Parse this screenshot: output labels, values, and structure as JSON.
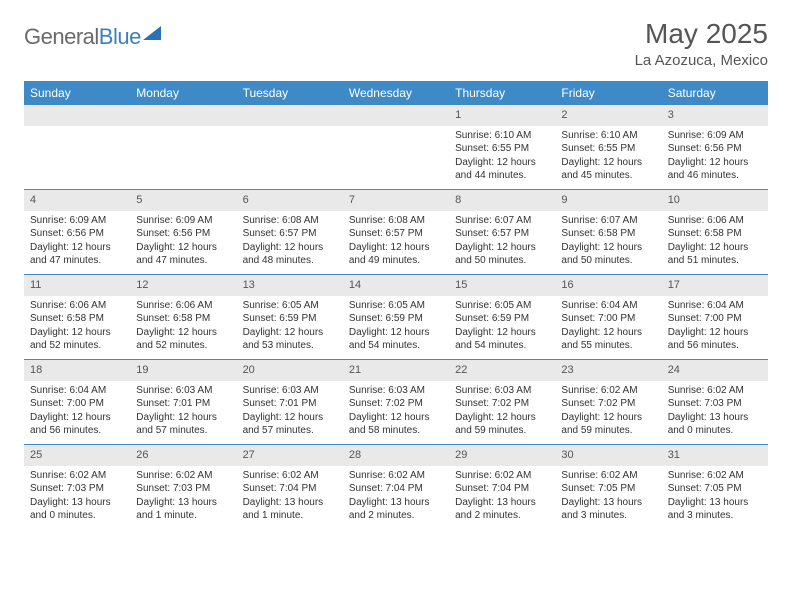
{
  "logo": {
    "text1": "General",
    "text2": "Blue"
  },
  "title": "May 2025",
  "location": "La Azozuca, Mexico",
  "colors": {
    "header_bg": "#3d8ac7",
    "header_fg": "#ffffff",
    "strip_bg": "#e9e9e9",
    "rule": "#3d8ac7",
    "text": "#333333",
    "title_fg": "#555555"
  },
  "dayNames": [
    "Sunday",
    "Monday",
    "Tuesday",
    "Wednesday",
    "Thursday",
    "Friday",
    "Saturday"
  ],
  "weeks": [
    [
      null,
      null,
      null,
      null,
      {
        "n": "1",
        "sunrise": "6:10 AM",
        "sunset": "6:55 PM",
        "dl": "12 hours and 44 minutes."
      },
      {
        "n": "2",
        "sunrise": "6:10 AM",
        "sunset": "6:55 PM",
        "dl": "12 hours and 45 minutes."
      },
      {
        "n": "3",
        "sunrise": "6:09 AM",
        "sunset": "6:56 PM",
        "dl": "12 hours and 46 minutes."
      }
    ],
    [
      {
        "n": "4",
        "sunrise": "6:09 AM",
        "sunset": "6:56 PM",
        "dl": "12 hours and 47 minutes."
      },
      {
        "n": "5",
        "sunrise": "6:09 AM",
        "sunset": "6:56 PM",
        "dl": "12 hours and 47 minutes."
      },
      {
        "n": "6",
        "sunrise": "6:08 AM",
        "sunset": "6:57 PM",
        "dl": "12 hours and 48 minutes."
      },
      {
        "n": "7",
        "sunrise": "6:08 AM",
        "sunset": "6:57 PM",
        "dl": "12 hours and 49 minutes."
      },
      {
        "n": "8",
        "sunrise": "6:07 AM",
        "sunset": "6:57 PM",
        "dl": "12 hours and 50 minutes."
      },
      {
        "n": "9",
        "sunrise": "6:07 AM",
        "sunset": "6:58 PM",
        "dl": "12 hours and 50 minutes."
      },
      {
        "n": "10",
        "sunrise": "6:06 AM",
        "sunset": "6:58 PM",
        "dl": "12 hours and 51 minutes."
      }
    ],
    [
      {
        "n": "11",
        "sunrise": "6:06 AM",
        "sunset": "6:58 PM",
        "dl": "12 hours and 52 minutes."
      },
      {
        "n": "12",
        "sunrise": "6:06 AM",
        "sunset": "6:58 PM",
        "dl": "12 hours and 52 minutes."
      },
      {
        "n": "13",
        "sunrise": "6:05 AM",
        "sunset": "6:59 PM",
        "dl": "12 hours and 53 minutes."
      },
      {
        "n": "14",
        "sunrise": "6:05 AM",
        "sunset": "6:59 PM",
        "dl": "12 hours and 54 minutes."
      },
      {
        "n": "15",
        "sunrise": "6:05 AM",
        "sunset": "6:59 PM",
        "dl": "12 hours and 54 minutes."
      },
      {
        "n": "16",
        "sunrise": "6:04 AM",
        "sunset": "7:00 PM",
        "dl": "12 hours and 55 minutes."
      },
      {
        "n": "17",
        "sunrise": "6:04 AM",
        "sunset": "7:00 PM",
        "dl": "12 hours and 56 minutes."
      }
    ],
    [
      {
        "n": "18",
        "sunrise": "6:04 AM",
        "sunset": "7:00 PM",
        "dl": "12 hours and 56 minutes."
      },
      {
        "n": "19",
        "sunrise": "6:03 AM",
        "sunset": "7:01 PM",
        "dl": "12 hours and 57 minutes."
      },
      {
        "n": "20",
        "sunrise": "6:03 AM",
        "sunset": "7:01 PM",
        "dl": "12 hours and 57 minutes."
      },
      {
        "n": "21",
        "sunrise": "6:03 AM",
        "sunset": "7:02 PM",
        "dl": "12 hours and 58 minutes."
      },
      {
        "n": "22",
        "sunrise": "6:03 AM",
        "sunset": "7:02 PM",
        "dl": "12 hours and 59 minutes."
      },
      {
        "n": "23",
        "sunrise": "6:02 AM",
        "sunset": "7:02 PM",
        "dl": "12 hours and 59 minutes."
      },
      {
        "n": "24",
        "sunrise": "6:02 AM",
        "sunset": "7:03 PM",
        "dl": "13 hours and 0 minutes."
      }
    ],
    [
      {
        "n": "25",
        "sunrise": "6:02 AM",
        "sunset": "7:03 PM",
        "dl": "13 hours and 0 minutes."
      },
      {
        "n": "26",
        "sunrise": "6:02 AM",
        "sunset": "7:03 PM",
        "dl": "13 hours and 1 minute."
      },
      {
        "n": "27",
        "sunrise": "6:02 AM",
        "sunset": "7:04 PM",
        "dl": "13 hours and 1 minute."
      },
      {
        "n": "28",
        "sunrise": "6:02 AM",
        "sunset": "7:04 PM",
        "dl": "13 hours and 2 minutes."
      },
      {
        "n": "29",
        "sunrise": "6:02 AM",
        "sunset": "7:04 PM",
        "dl": "13 hours and 2 minutes."
      },
      {
        "n": "30",
        "sunrise": "6:02 AM",
        "sunset": "7:05 PM",
        "dl": "13 hours and 3 minutes."
      },
      {
        "n": "31",
        "sunrise": "6:02 AM",
        "sunset": "7:05 PM",
        "dl": "13 hours and 3 minutes."
      }
    ]
  ],
  "labels": {
    "sunrise": "Sunrise: ",
    "sunset": "Sunset: ",
    "daylight": "Daylight: "
  }
}
